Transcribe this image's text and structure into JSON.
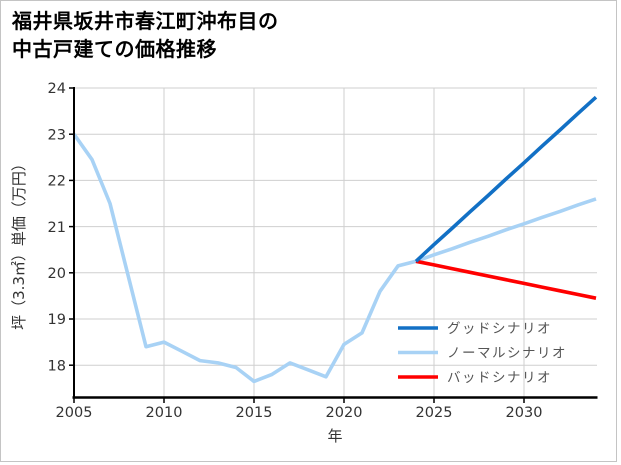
{
  "page": {
    "title_line1": "福井県坂井市春江町沖布目の",
    "title_line2": "中古戸建ての価格推移"
  },
  "chart_data": {
    "type": "line",
    "title": "福井県坂井市春江町沖布目の中古戸建ての価格推移",
    "xlabel": "年",
    "ylabel": "坪（3.3㎡）単価（万円）",
    "x_ticks": [
      2005,
      2010,
      2015,
      2020,
      2025,
      2030
    ],
    "y_ticks": [
      18,
      19,
      20,
      21,
      22,
      23,
      24
    ],
    "xlim": [
      2005,
      2034
    ],
    "ylim": [
      17.3,
      24.05
    ],
    "grid": true,
    "legend_position": "lower-right",
    "series": [
      {
        "key": "good",
        "name": "グッドシナリオ",
        "color": "#1270c5",
        "x": [
          2024,
          2025,
          2026,
          2027,
          2028,
          2029,
          2030,
          2031,
          2032,
          2033,
          2034
        ],
        "values": [
          20.25,
          20.61,
          20.96,
          21.32,
          21.67,
          22.03,
          22.38,
          22.74,
          23.09,
          23.45,
          23.8
        ]
      },
      {
        "key": "normal",
        "name": "ノーマルシナリオ",
        "color": "#a8d2f5",
        "x": [
          2005,
          2006,
          2007,
          2008,
          2009,
          2010,
          2011,
          2012,
          2013,
          2014,
          2015,
          2016,
          2017,
          2018,
          2019,
          2020,
          2021,
          2022,
          2023,
          2024,
          2025,
          2026,
          2027,
          2028,
          2029,
          2030,
          2031,
          2032,
          2033,
          2034
        ],
        "values": [
          23.0,
          22.45,
          21.5,
          19.95,
          18.4,
          18.5,
          18.3,
          18.1,
          18.05,
          17.95,
          17.65,
          17.8,
          18.05,
          17.9,
          17.75,
          18.45,
          18.7,
          19.6,
          20.15,
          20.25,
          20.39,
          20.52,
          20.66,
          20.79,
          20.93,
          21.06,
          21.2,
          21.33,
          21.47,
          21.6
        ]
      },
      {
        "key": "bad",
        "name": "バッドシナリオ",
        "color": "#ff0000",
        "x": [
          2024,
          2025,
          2026,
          2027,
          2028,
          2029,
          2030,
          2031,
          2032,
          2033,
          2034
        ],
        "values": [
          20.25,
          20.17,
          20.09,
          20.01,
          19.93,
          19.85,
          19.77,
          19.69,
          19.61,
          19.53,
          19.45
        ]
      }
    ]
  }
}
